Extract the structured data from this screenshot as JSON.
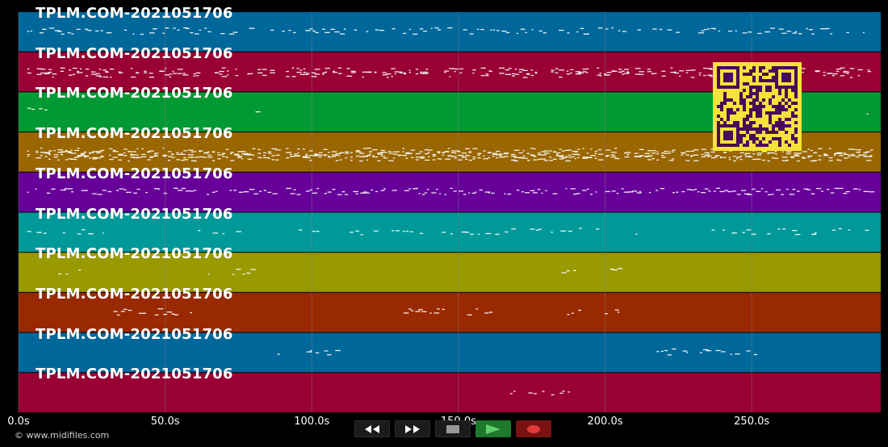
{
  "timeline": {
    "axis_ticks": [
      "0.0s",
      "50.0s",
      "100.0s",
      "150.0s",
      "200.0s",
      "250.0s"
    ],
    "axis_values": [
      0,
      50,
      100,
      150,
      200,
      250
    ],
    "x_max": 294
  },
  "lanes": [
    {
      "label": "TPLM.COM-2021051706",
      "color": "#00679a"
    },
    {
      "label": "TPLM.COM-2021051706",
      "color": "#990033"
    },
    {
      "label": "TPLM.COM-2021051706",
      "color": "#009933"
    },
    {
      "label": "TPLM.COM-2021051706",
      "color": "#996600"
    },
    {
      "label": "TPLM.COM-2021051706",
      "color": "#660099"
    },
    {
      "label": "TPLM.COM-2021051706",
      "color": "#009999"
    },
    {
      "label": "TPLM.COM-2021051706",
      "color": "#999900"
    },
    {
      "label": "TPLM.COM-2021051706",
      "color": "#992900"
    },
    {
      "label": "TPLM.COM-2021051706",
      "color": "#00679a"
    },
    {
      "label": "TPLM.COM-2021051706",
      "color": "#990033"
    }
  ],
  "copyright": "© www.midifiles.com",
  "transport": {
    "rewind_icon": "rewind-icon",
    "fast_forward_icon": "fast-forward-icon",
    "stop_icon": "stop-icon",
    "play_icon": "play-icon",
    "record_icon": "record-icon"
  },
  "qr_code": {
    "fg": "#4a0a5a",
    "bg": "#f5e23a"
  },
  "colors": {
    "background": "#000000",
    "grid": "#7f7f7f",
    "notes": "#ffffff"
  }
}
